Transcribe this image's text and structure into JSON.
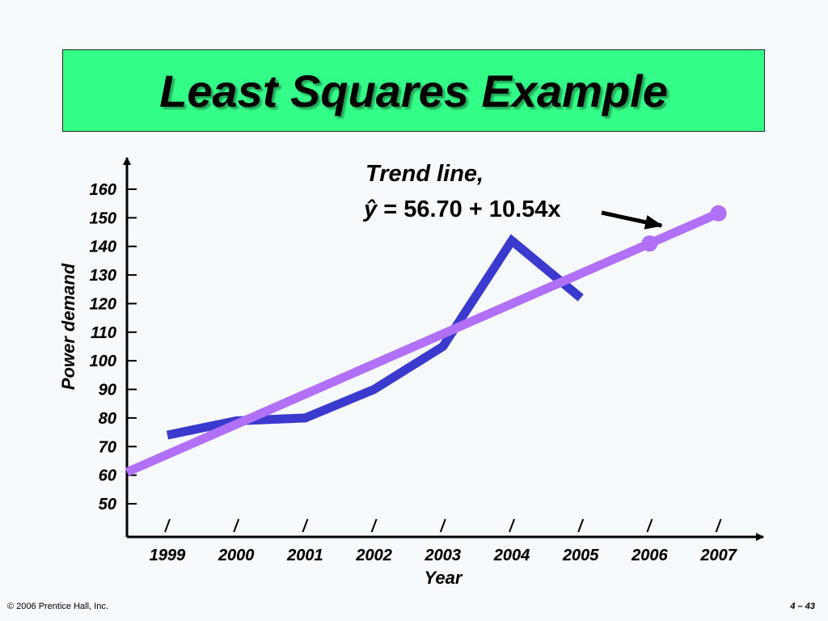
{
  "slide": {
    "title": "Least Squares Example",
    "footer_left": "© 2006 Prentice Hall, Inc.",
    "footer_right": "4 – 43"
  },
  "chart_data": {
    "type": "line",
    "xlabel": "Year",
    "ylabel": "Power demand",
    "x": [
      1999,
      2000,
      2001,
      2002,
      2003,
      2004,
      2005,
      2006,
      2007
    ],
    "ylim": [
      50,
      160
    ],
    "yticks": [
      50,
      60,
      70,
      80,
      90,
      100,
      110,
      120,
      130,
      140,
      150,
      160
    ],
    "series": [
      {
        "name": "",
        "color": "#3a3acf",
        "x": [
          1999,
          2000,
          2001,
          2002,
          2003,
          2004,
          2005
        ],
        "values": [
          74,
          79,
          80,
          90,
          105,
          142,
          122
        ]
      },
      {
        "name": "",
        "color": "#b070f8",
        "x": [
          1999,
          2000,
          2001,
          2002,
          2003,
          2004,
          2005,
          2006,
          2007
        ],
        "values": [
          67.25,
          77.79,
          88.33,
          98.87,
          109.41,
          119.95,
          130.49,
          141.03,
          151.57
        ],
        "highlighted_x": [
          2006,
          2007
        ]
      }
    ],
    "annotation": {
      "line1": "Trend line,",
      "eq_symbol": "ŷ",
      "eq_rest": " = 56.70 + 10.54x"
    },
    "grid": false
  }
}
